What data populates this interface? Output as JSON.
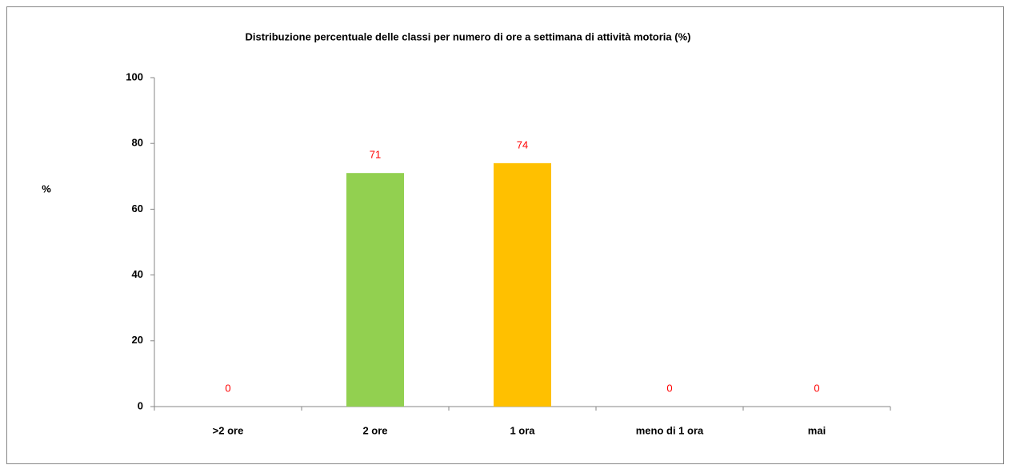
{
  "chart_data": {
    "type": "bar",
    "title": "Distribuzione percentuale delle classi per numero di ore a settimana di attività motoria (%)",
    "y_label": "%",
    "categories": [
      ">2 ore",
      "2 ore",
      "1 ora",
      "meno di 1 ora",
      "mai"
    ],
    "values": [
      0,
      71,
      74,
      0,
      0
    ],
    "colors": [
      null,
      "#92d050",
      "#ffc000",
      null,
      null
    ],
    "value_label_color": "#ff0000",
    "ylim": [
      0,
      100
    ],
    "yticks": [
      0,
      20,
      40,
      60,
      80,
      100
    ],
    "grid": false
  }
}
